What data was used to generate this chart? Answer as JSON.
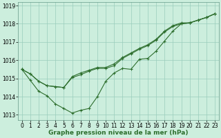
{
  "title": "Graphe pression niveau de la mer (hPa)",
  "bg_color": "#cceedd",
  "grid_color": "#99ccbb",
  "line_color": "#2d6e2d",
  "marker_color": "#2d6e2d",
  "hours": [
    0,
    1,
    2,
    3,
    4,
    5,
    6,
    7,
    8,
    9,
    10,
    11,
    12,
    13,
    14,
    15,
    16,
    17,
    18,
    19,
    20,
    21,
    22,
    23
  ],
  "series1": [
    1015.5,
    1014.9,
    1014.3,
    1014.05,
    1013.6,
    1013.35,
    1013.1,
    1013.25,
    1013.35,
    1014.0,
    1014.85,
    1015.3,
    1015.55,
    1015.5,
    1016.05,
    1016.1,
    1016.5,
    1017.05,
    1017.6,
    1018.0,
    1018.05,
    1018.2,
    1018.35,
    1018.55
  ],
  "series2": [
    1015.5,
    1015.25,
    1014.85,
    1014.6,
    1014.55,
    1014.5,
    1015.05,
    1015.2,
    1015.4,
    1015.55,
    1015.55,
    1015.7,
    1016.1,
    1016.35,
    1016.6,
    1016.8,
    1017.1,
    1017.55,
    1017.85,
    1018.0,
    1018.05,
    1018.2,
    1018.35,
    1018.55
  ],
  "series3": [
    1015.5,
    1015.25,
    1014.85,
    1014.6,
    1014.55,
    1014.5,
    1015.1,
    1015.3,
    1015.45,
    1015.6,
    1015.6,
    1015.8,
    1016.15,
    1016.4,
    1016.65,
    1016.85,
    1017.15,
    1017.6,
    1017.9,
    1018.05,
    1018.05,
    1018.2,
    1018.35,
    1018.55
  ],
  "ylim": [
    1012.7,
    1019.2
  ],
  "yticks": [
    1013,
    1014,
    1015,
    1016,
    1017,
    1018,
    1019
  ],
  "tick_fontsize": 5.5,
  "title_fontsize": 6.5
}
